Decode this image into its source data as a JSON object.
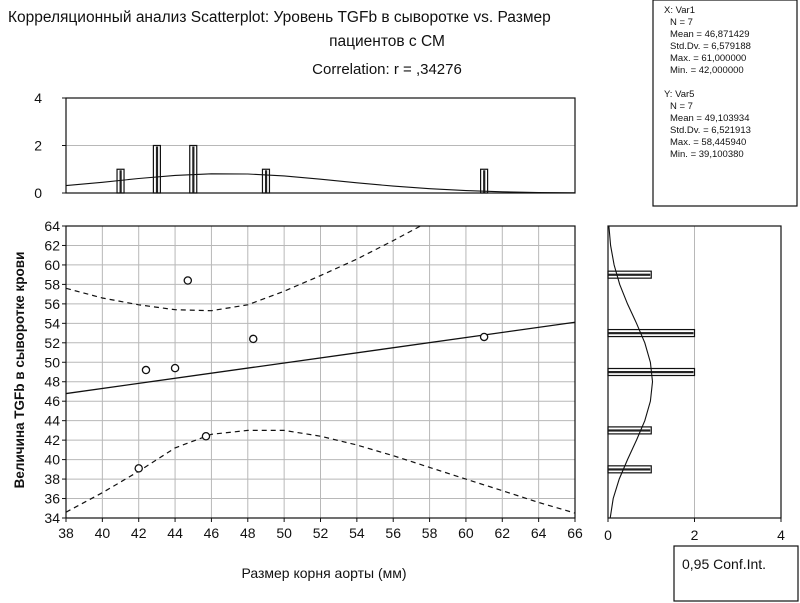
{
  "title": {
    "line1": "Корреляционный анализ Scatterplot: Уровень TGFb в сыворотке vs. Размер",
    "line2": "пациентов с СМ",
    "correlation": "Correlation: r = ,34276"
  },
  "chart_data": {
    "type": "scatter",
    "xlabel": "Размер корня аорты (мм)",
    "ylabel": "Величина TGFb в сыворотке крови",
    "xlim": [
      38,
      66
    ],
    "ylim": [
      34,
      64
    ],
    "x_ticks": [
      "38",
      "40",
      "42",
      "44",
      "46",
      "48",
      "50",
      "52",
      "54",
      "56",
      "58",
      "60",
      "62",
      "64",
      "66"
    ],
    "y_ticks": [
      "34",
      "36",
      "38",
      "40",
      "42",
      "44",
      "46",
      "48",
      "50",
      "52",
      "54",
      "56",
      "58",
      "60",
      "62",
      "64"
    ],
    "points": [
      {
        "x": 42.0,
        "y": 39.1
      },
      {
        "x": 42.4,
        "y": 49.2
      },
      {
        "x": 44.0,
        "y": 49.4
      },
      {
        "x": 44.7,
        "y": 58.4
      },
      {
        "x": 45.7,
        "y": 42.4
      },
      {
        "x": 48.3,
        "y": 52.4
      },
      {
        "x": 61.0,
        "y": 52.6
      }
    ],
    "regression": {
      "intercept": 36.84,
      "slope": 0.2617
    },
    "confidence_band": {
      "upper": [
        [
          38,
          57.6
        ],
        [
          40,
          56.6
        ],
        [
          42,
          55.9
        ],
        [
          44,
          55.4
        ],
        [
          46,
          55.3
        ],
        [
          48,
          55.9
        ],
        [
          50,
          57.3
        ],
        [
          52,
          58.9
        ],
        [
          54,
          60.6
        ],
        [
          56,
          62.5
        ],
        [
          57.5,
          64.0
        ]
      ],
      "lower": [
        [
          38,
          34.6
        ],
        [
          40,
          36.6
        ],
        [
          42,
          38.8
        ],
        [
          44,
          41.2
        ],
        [
          46,
          42.6
        ],
        [
          48,
          43.0
        ],
        [
          50,
          43.0
        ],
        [
          52,
          42.4
        ],
        [
          54,
          41.5
        ],
        [
          56,
          40.4
        ],
        [
          58,
          39.2
        ],
        [
          60,
          38.0
        ],
        [
          62,
          36.8
        ],
        [
          64,
          35.6
        ],
        [
          66,
          34.5
        ]
      ]
    },
    "x_hist": {
      "ylim": [
        0,
        4
      ],
      "y_ticks": [
        "0",
        "2",
        "4"
      ],
      "bars": [
        {
          "x": 41,
          "count": 1
        },
        {
          "x": 43,
          "count": 2
        },
        {
          "x": 45,
          "count": 2
        },
        {
          "x": 49,
          "count": 1
        },
        {
          "x": 61,
          "count": 1
        }
      ],
      "curve": [
        [
          38,
          0.31
        ],
        [
          40,
          0.45
        ],
        [
          42,
          0.61
        ],
        [
          44,
          0.74
        ],
        [
          46,
          0.81
        ],
        [
          48,
          0.8
        ],
        [
          50,
          0.72
        ],
        [
          52,
          0.58
        ],
        [
          54,
          0.43
        ],
        [
          56,
          0.29
        ],
        [
          58,
          0.18
        ],
        [
          60,
          0.1
        ],
        [
          62,
          0.05
        ],
        [
          64,
          0.02
        ],
        [
          66,
          0.01
        ]
      ]
    },
    "y_hist": {
      "xlim": [
        0,
        4
      ],
      "x_ticks": [
        "0",
        "2",
        "4"
      ],
      "bars": [
        {
          "y": 39,
          "count": 1
        },
        {
          "y": 43,
          "count": 1
        },
        {
          "y": 49,
          "count": 2
        },
        {
          "y": 53,
          "count": 2
        },
        {
          "y": 59,
          "count": 1
        }
      ],
      "curve": [
        [
          34,
          0.05
        ],
        [
          36,
          0.12
        ],
        [
          38,
          0.26
        ],
        [
          40,
          0.45
        ],
        [
          42,
          0.66
        ],
        [
          44,
          0.85
        ],
        [
          46,
          0.98
        ],
        [
          48,
          1.03
        ],
        [
          50,
          0.98
        ],
        [
          52,
          0.85
        ],
        [
          54,
          0.66
        ],
        [
          56,
          0.45
        ],
        [
          58,
          0.27
        ],
        [
          60,
          0.14
        ],
        [
          62,
          0.06
        ],
        [
          64,
          0.02
        ]
      ]
    }
  },
  "stats": {
    "x": {
      "header": "X:  Var1",
      "lines": [
        "N = 7",
        "Mean = 46,871429",
        "Std.Dv. = 6,579188",
        "Max. = 61,000000",
        "Min. = 42,000000"
      ]
    },
    "y": {
      "header": "Y:  Var5",
      "lines": [
        "N = 7",
        "Mean = 49,103934",
        "Std.Dv. = 6,521913",
        "Max. = 58,445940",
        "Min. = 39,100380"
      ]
    }
  },
  "legend": {
    "label": "0,95 Conf.Int."
  }
}
